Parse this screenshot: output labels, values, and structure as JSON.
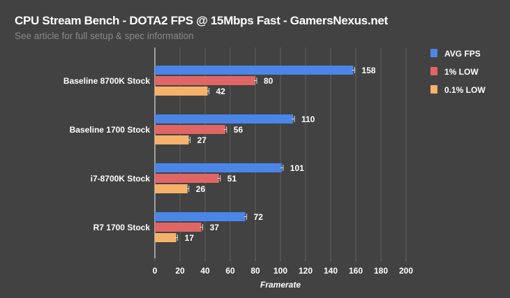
{
  "chart_data": {
    "type": "bar",
    "orientation": "horizontal",
    "title": "CPU Stream Bench - DOTA2 FPS @ 15Mbps Fast  - GamersNexus.net",
    "subtitle": "See article for full setup & spec information",
    "xlabel": "Framerate",
    "ylabel": "",
    "xlim": [
      0,
      200
    ],
    "xticks": [
      0,
      20,
      40,
      60,
      80,
      100,
      120,
      140,
      160,
      180,
      200
    ],
    "grid": true,
    "legend_position": "top-right",
    "categories": [
      "Baseline 8700K Stock",
      "Baseline 1700 Stock",
      "i7-8700K Stock",
      "R7 1700 Stock"
    ],
    "series": [
      {
        "name": "AVG FPS",
        "color": "#4a86e8",
        "values": [
          158,
          110,
          101,
          72
        ]
      },
      {
        "name": "1% LOW",
        "color": "#e06666",
        "values": [
          80,
          56,
          51,
          37
        ]
      },
      {
        "name": "0.1% LOW",
        "color": "#f6b26b",
        "values": [
          42,
          27,
          26,
          17
        ]
      }
    ]
  }
}
